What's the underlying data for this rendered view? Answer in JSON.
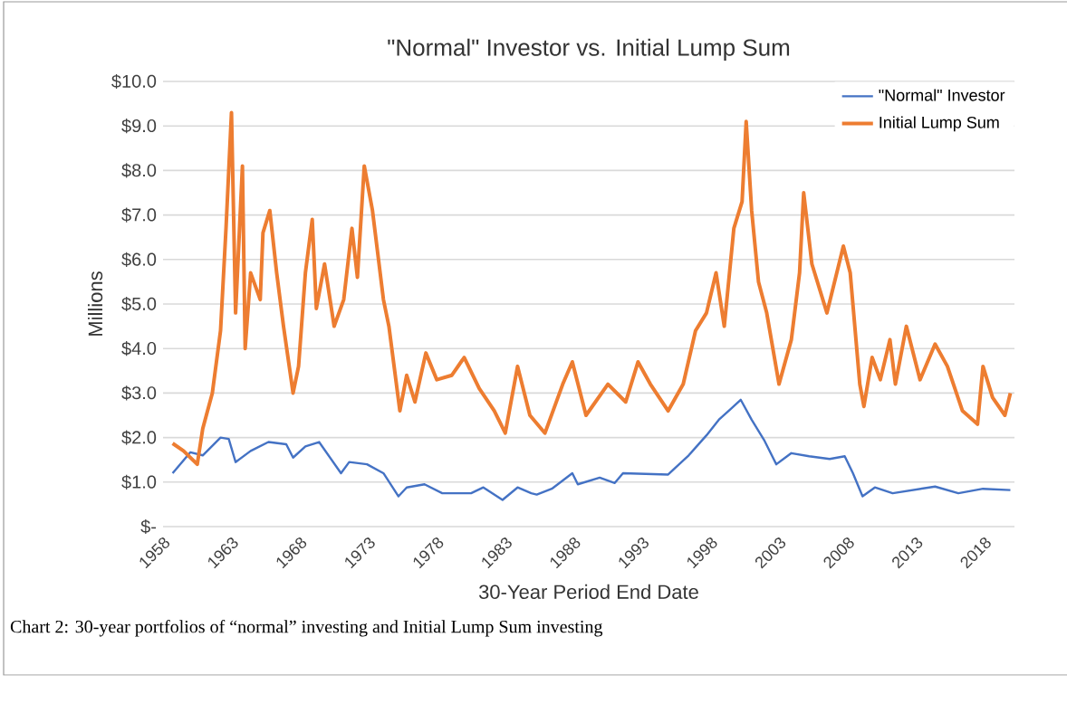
{
  "chart_data": {
    "type": "line",
    "title": "\"Normal\" Investor vs. Initial Lump Sum",
    "xlabel": "30-Year Period End Date",
    "ylabel": "Millions",
    "annotations": [
      "Chart 2: 30-year portfolios of “normal” investing and Initial Lump Sum investing"
    ],
    "xlim": [
      1958,
      2020.2
    ],
    "xticks": [
      1958,
      1963,
      1968,
      1973,
      1978,
      1983,
      1988,
      1993,
      1998,
      2003,
      2008,
      2013,
      2018
    ],
    "ylim": [
      0,
      10
    ],
    "yticks": [
      {
        "value": 0,
        "label": "$-"
      },
      {
        "value": 1,
        "label": "$1.0"
      },
      {
        "value": 2,
        "label": "$2.0"
      },
      {
        "value": 3,
        "label": "$3.0"
      },
      {
        "value": 4,
        "label": "$4.0"
      },
      {
        "value": 5,
        "label": "$5.0"
      },
      {
        "value": 6,
        "label": "$6.0"
      },
      {
        "value": 7,
        "label": "$7.0"
      },
      {
        "value": 8,
        "label": "$8.0"
      },
      {
        "value": 9,
        "label": "$9.0"
      },
      {
        "value": 10,
        "label": "$10.0"
      }
    ],
    "grid": "y",
    "legend": "top right",
    "marker": "none",
    "line_style": "solid",
    "series": [
      {
        "name": "\"Normal\" Investor",
        "color": "#4472c4",
        "x": [
          1958.7,
          1960.0,
          1960.9,
          1962.2,
          1962.8,
          1963.3,
          1964.4,
          1965.7,
          1967.0,
          1967.5,
          1968.4,
          1969.4,
          1971.0,
          1971.6,
          1972.9,
          1974.1,
          1975.2,
          1975.8,
          1977.1,
          1978.4,
          1980.5,
          1981.4,
          1982.8,
          1983.9,
          1984.9,
          1985.3,
          1986.4,
          1987.9,
          1988.3,
          1989.9,
          1991.0,
          1991.6,
          1994.9,
          1996.4,
          1997.7,
          1998.6,
          1999.5,
          2000.2,
          2001.0,
          2001.9,
          2002.8,
          2003.9,
          2005.2,
          2006.7,
          2007.8,
          2008.4,
          2009.1,
          2010.0,
          2011.3,
          2014.4,
          2016.1,
          2017.9,
          2019.9
        ],
        "values": [
          1.2,
          1.67,
          1.6,
          2.0,
          1.97,
          1.45,
          1.7,
          1.9,
          1.85,
          1.55,
          1.8,
          1.9,
          1.2,
          1.45,
          1.4,
          1.2,
          0.68,
          0.88,
          0.95,
          0.75,
          0.75,
          0.88,
          0.6,
          0.88,
          0.75,
          0.72,
          0.85,
          1.2,
          0.95,
          1.1,
          0.98,
          1.2,
          1.17,
          1.6,
          2.05,
          2.4,
          2.65,
          2.85,
          2.4,
          1.95,
          1.4,
          1.65,
          1.58,
          1.52,
          1.58,
          1.2,
          0.68,
          0.88,
          0.75,
          0.9,
          0.75,
          0.85,
          0.82
        ]
      },
      {
        "name": "Initial Lump Sum",
        "color": "#ed7d31",
        "x": [
          1958.7,
          1959.5,
          1960.5,
          1960.9,
          1961.6,
          1962.2,
          1962.6,
          1963.0,
          1963.3,
          1963.8,
          1964.0,
          1964.4,
          1965.1,
          1965.3,
          1965.8,
          1966.3,
          1966.8,
          1967.5,
          1967.9,
          1968.4,
          1968.9,
          1969.2,
          1969.8,
          1970.5,
          1971.2,
          1971.8,
          1972.2,
          1972.7,
          1973.3,
          1974.1,
          1974.5,
          1975.3,
          1975.8,
          1976.4,
          1977.2,
          1978.0,
          1979.1,
          1980.0,
          1981.1,
          1982.2,
          1983.0,
          1983.9,
          1984.8,
          1985.9,
          1987.2,
          1987.9,
          1988.9,
          1990.5,
          1991.8,
          1992.7,
          1993.6,
          1994.9,
          1996.0,
          1996.9,
          1997.7,
          1998.4,
          1999.0,
          1999.7,
          2000.3,
          2000.6,
          2001.0,
          2001.5,
          2002.1,
          2003.0,
          2003.9,
          2004.5,
          2004.8,
          2005.4,
          2006.5,
          2007.7,
          2008.2,
          2008.9,
          2009.2,
          2009.8,
          2010.4,
          2011.1,
          2011.5,
          2012.3,
          2013.3,
          2014.4,
          2015.3,
          2016.4,
          2017.5,
          2017.9,
          2018.6,
          2019.5,
          2019.9
        ],
        "values": [
          1.87,
          1.7,
          1.4,
          2.2,
          3.0,
          4.4,
          6.7,
          9.3,
          4.8,
          8.1,
          4.0,
          5.7,
          5.1,
          6.6,
          7.1,
          5.7,
          4.5,
          3.0,
          3.6,
          5.7,
          6.9,
          4.9,
          5.9,
          4.5,
          5.1,
          6.7,
          5.6,
          8.1,
          7.1,
          5.1,
          4.5,
          2.6,
          3.4,
          2.8,
          3.9,
          3.3,
          3.4,
          3.8,
          3.1,
          2.6,
          2.1,
          3.6,
          2.5,
          2.1,
          3.2,
          3.7,
          2.5,
          3.2,
          2.8,
          3.7,
          3.2,
          2.6,
          3.2,
          4.4,
          4.8,
          5.7,
          4.5,
          6.7,
          7.3,
          9.1,
          7.1,
          5.5,
          4.8,
          3.2,
          4.2,
          5.7,
          7.5,
          5.9,
          4.8,
          6.3,
          5.7,
          3.2,
          2.7,
          3.8,
          3.3,
          4.2,
          3.2,
          4.5,
          3.3,
          4.1,
          3.6,
          2.6,
          2.3,
          3.6,
          2.9,
          2.5,
          3.0
        ]
      }
    ]
  }
}
